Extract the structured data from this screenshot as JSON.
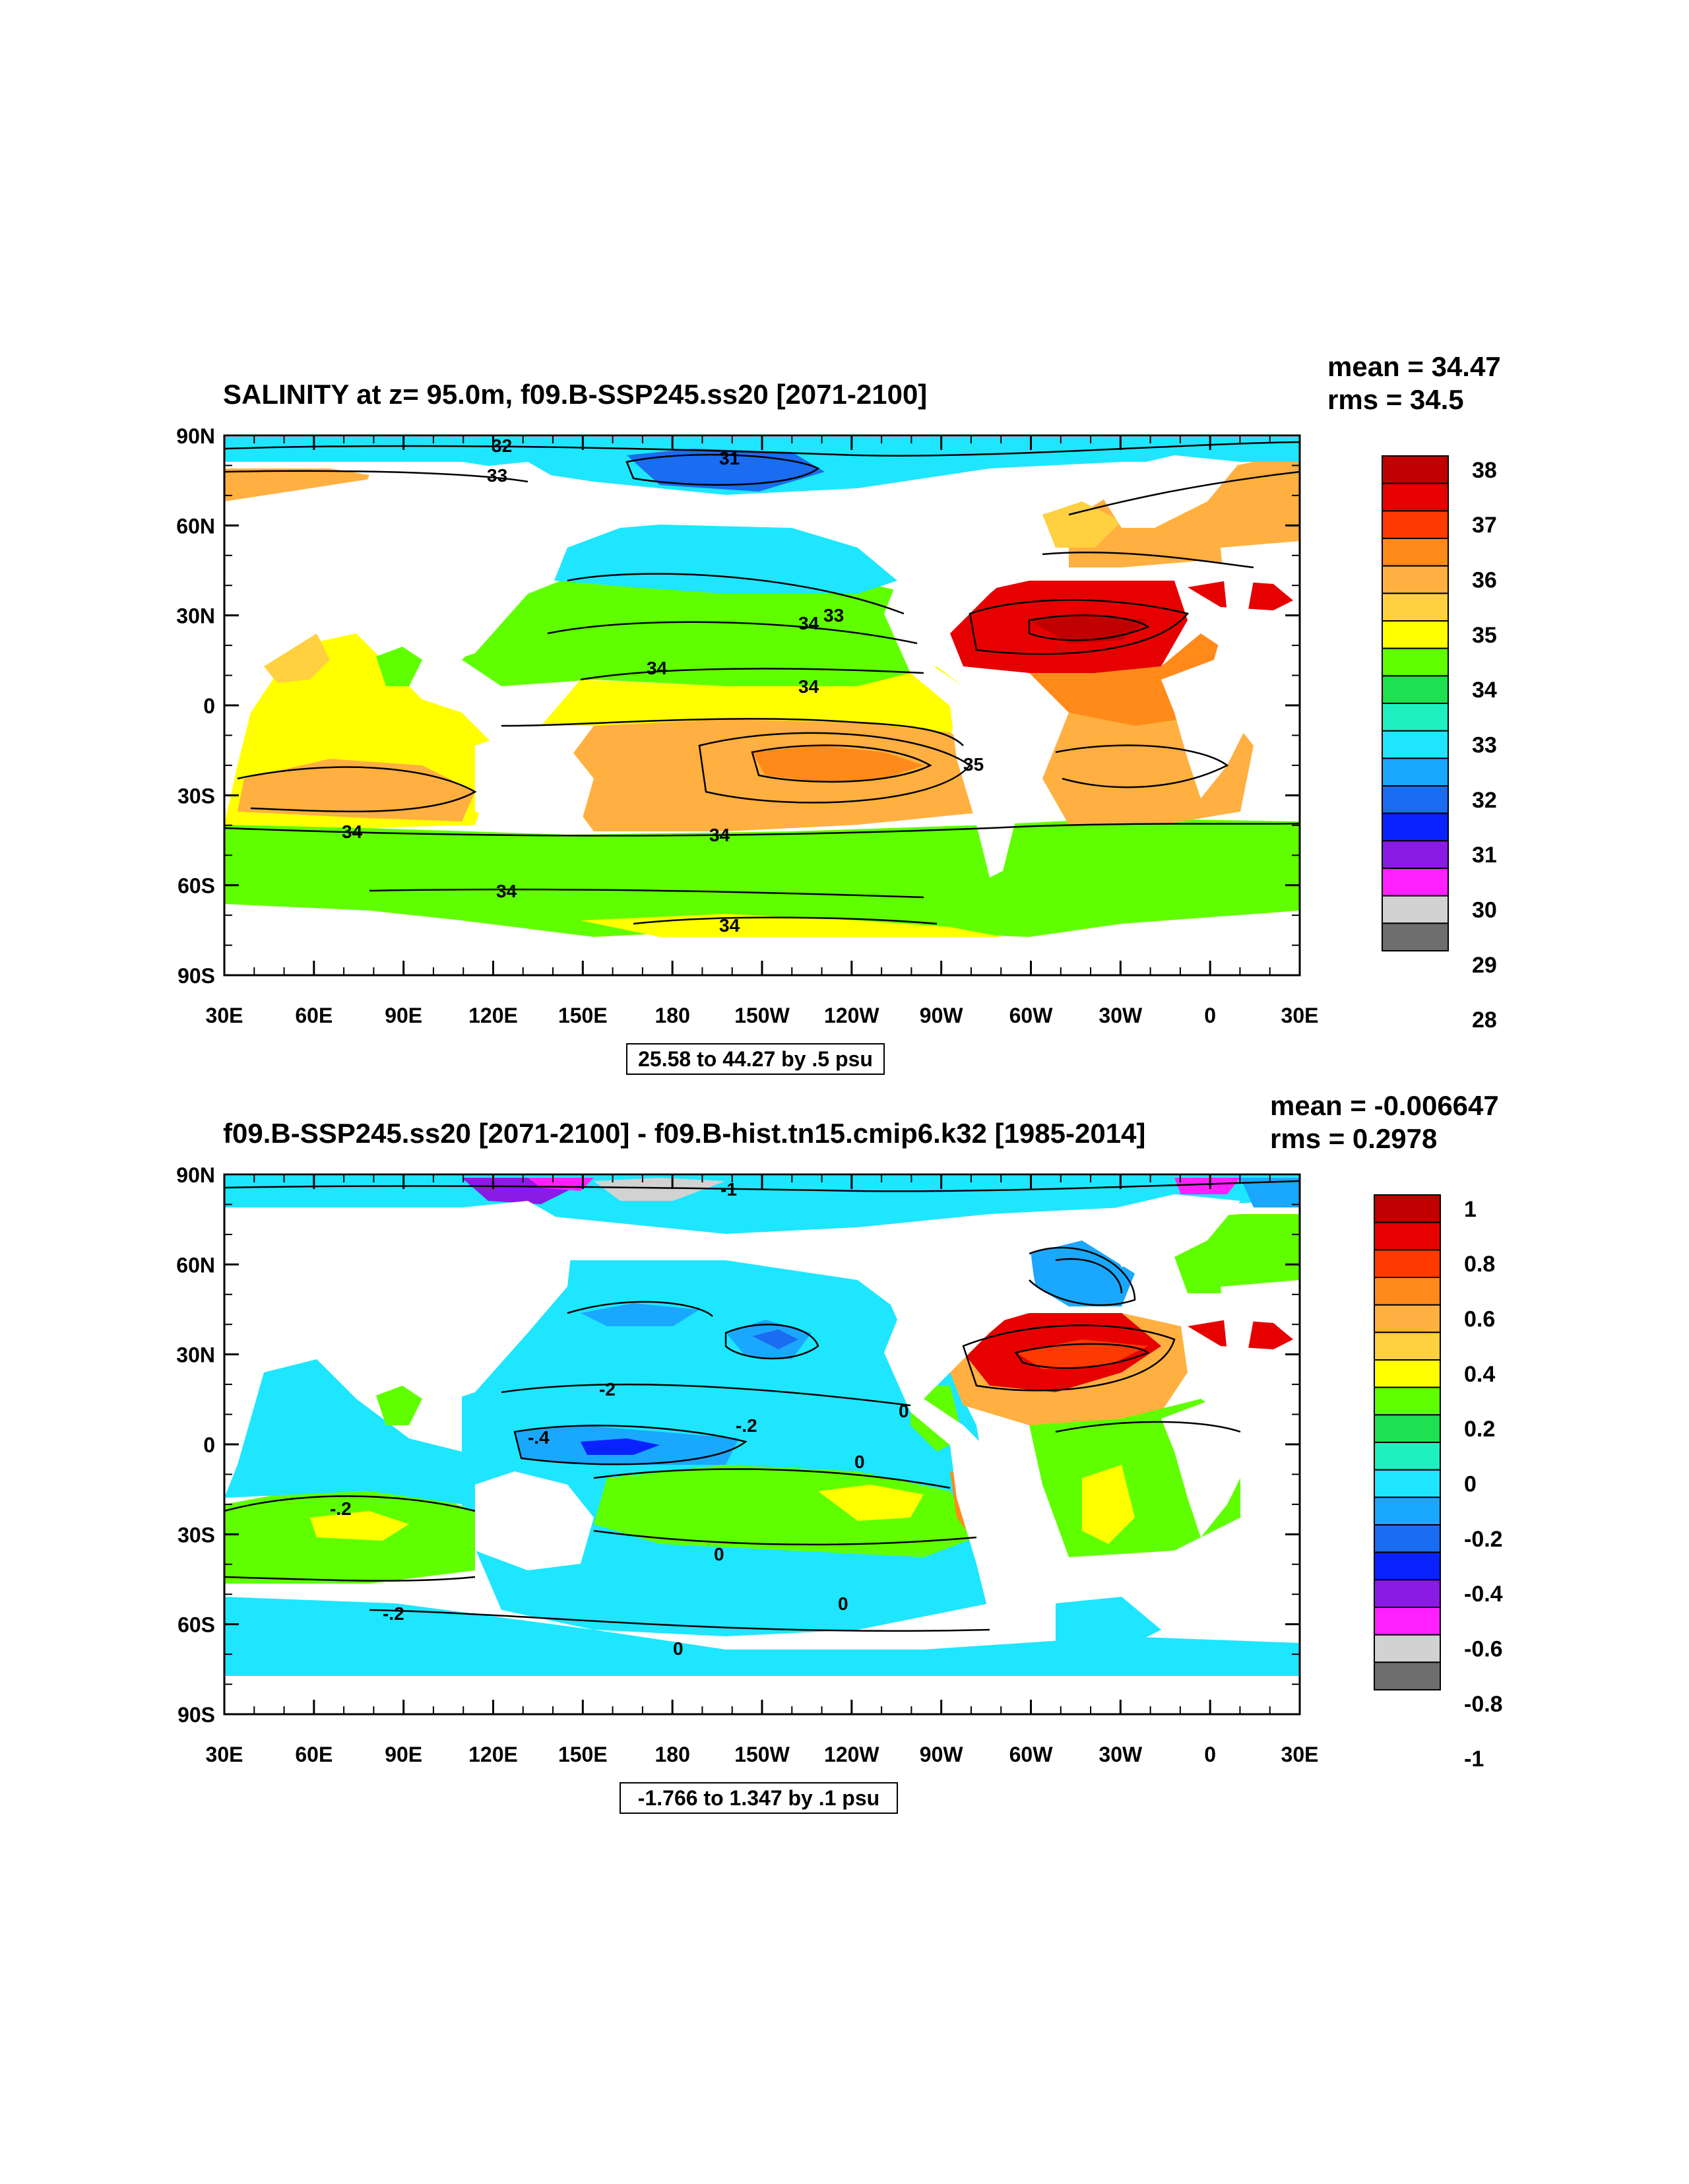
{
  "chart_data": [
    {
      "type": "heatmap",
      "title": "SALINITY at z=  95.0m, f09.B-SSP245.ss20 [2071-2100]",
      "mean_label": "mean = 34.47",
      "rms_label": "rms = 34.5",
      "info": "25.58 to 44.27 by .5 psu",
      "lat_ticks": [
        "90N",
        "60N",
        "30N",
        "0",
        "30S",
        "60S",
        "90S"
      ],
      "lon_ticks": [
        "30E",
        "60E",
        "90E",
        "120E",
        "150E",
        "180",
        "150W",
        "120W",
        "90W",
        "60W",
        "30W",
        "0",
        "30E"
      ],
      "colorbar_labels": [
        "38",
        "37",
        "36",
        "35",
        "34",
        "33",
        "32",
        "31",
        "30",
        "29",
        "28"
      ],
      "colorbar_colors": [
        "#c00000",
        "#e60000",
        "#ff3a00",
        "#ff8a1a",
        "#ffb040",
        "#ffd040",
        "#ffff00",
        "#60ff00",
        "#1ee050",
        "#1ef0c0",
        "#1ee6ff",
        "#1aa8ff",
        "#1a6cf0",
        "#0a22ff",
        "#8a1ae6",
        "#ff20ff",
        "#d2d2d2",
        "#6e6e6e"
      ],
      "contour_labels": [
        "32",
        "33",
        "31",
        "33",
        "34",
        "34",
        "34",
        "35",
        "34",
        "34",
        "34",
        "34"
      ]
    },
    {
      "type": "heatmap",
      "title": "f09.B-SSP245.ss20 [2071-2100] - f09.B-hist.tn15.cmip6.k32 [1985-2014]",
      "mean_label": "mean = -0.006647",
      "rms_label": "rms = 0.2978",
      "info": "-1.766 to 1.347 by .1 psu",
      "lat_ticks": [
        "90N",
        "60N",
        "30N",
        "0",
        "30S",
        "60S",
        "90S"
      ],
      "lon_ticks": [
        "30E",
        "60E",
        "90E",
        "120E",
        "150E",
        "180",
        "150W",
        "120W",
        "90W",
        "60W",
        "30W",
        "0",
        "30E"
      ],
      "colorbar_labels": [
        "1",
        "0.8",
        "0.6",
        "0.4",
        "0.2",
        "0",
        "-0.2",
        "-0.4",
        "-0.6",
        "-0.8",
        "-1"
      ],
      "colorbar_colors": [
        "#c00000",
        "#e60000",
        "#ff3a00",
        "#ff8a1a",
        "#ffb040",
        "#ffd040",
        "#ffff00",
        "#60ff00",
        "#1ee050",
        "#1ef0c0",
        "#1ee6ff",
        "#1aa8ff",
        "#1a6cf0",
        "#0a22ff",
        "#8a1ae6",
        "#ff20ff",
        "#d2d2d2",
        "#6e6e6e"
      ],
      "contour_labels": [
        "-1",
        "-2",
        "-.2",
        "0",
        "-.4",
        "-.2",
        "0",
        "0",
        "0",
        "-.2",
        "0"
      ]
    }
  ]
}
